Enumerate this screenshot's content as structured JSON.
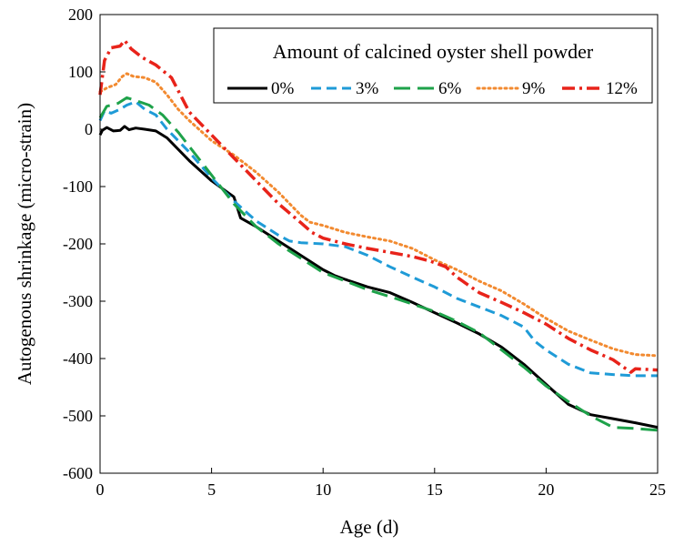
{
  "chart_data": {
    "type": "line",
    "xlabel": "Age (d)",
    "ylabel": "Autogenous  shrinkage  (micro-strain)",
    "xlim": [
      0,
      25
    ],
    "ylim": [
      -600,
      200
    ],
    "xticks": [
      0,
      5,
      10,
      15,
      20,
      25
    ],
    "yticks": [
      200,
      100,
      0,
      -100,
      -200,
      -300,
      -400,
      -500,
      -600
    ],
    "xtick_labels": [
      "0",
      "5",
      "10",
      "15",
      "20",
      "25"
    ],
    "ytick_labels": [
      "200",
      "100",
      "0",
      "-100",
      "-200",
      "-300",
      "-400",
      "-500",
      "-600"
    ],
    "grid": false,
    "legend": {
      "title": "Amount  of calcined oyster shell powder",
      "position": "top-right"
    },
    "series": [
      {
        "name": "0%",
        "color": "#000000",
        "dash": "solid",
        "points": [
          [
            0,
            -10
          ],
          [
            0.1,
            -2
          ],
          [
            0.3,
            3
          ],
          [
            0.6,
            -3
          ],
          [
            0.9,
            -2
          ],
          [
            1.1,
            5
          ],
          [
            1.3,
            -1
          ],
          [
            1.6,
            2
          ],
          [
            2,
            0
          ],
          [
            2.5,
            -3
          ],
          [
            3,
            -15
          ],
          [
            4,
            -55
          ],
          [
            5,
            -90
          ],
          [
            6,
            -118
          ],
          [
            6.1,
            -130
          ],
          [
            6.3,
            -155
          ],
          [
            7,
            -170
          ],
          [
            8,
            -195
          ],
          [
            9,
            -220
          ],
          [
            10,
            -245
          ],
          [
            10.5,
            -255
          ],
          [
            11,
            -262
          ],
          [
            12,
            -275
          ],
          [
            13,
            -285
          ],
          [
            14,
            -302
          ],
          [
            15,
            -320
          ],
          [
            16,
            -338
          ],
          [
            17,
            -357
          ],
          [
            18,
            -380
          ],
          [
            19,
            -410
          ],
          [
            20,
            -445
          ],
          [
            21,
            -480
          ],
          [
            22,
            -498
          ],
          [
            23,
            -505
          ],
          [
            24,
            -512
          ],
          [
            25,
            -520
          ]
        ]
      },
      {
        "name": "3%",
        "color": "#1f9bd7",
        "dash": "dashed",
        "points": [
          [
            0,
            15
          ],
          [
            0.2,
            32
          ],
          [
            0.5,
            28
          ],
          [
            0.9,
            35
          ],
          [
            1.2,
            42
          ],
          [
            1.6,
            48
          ],
          [
            2,
            35
          ],
          [
            2.5,
            25
          ],
          [
            3,
            0
          ],
          [
            4,
            -40
          ],
          [
            5,
            -85
          ],
          [
            6,
            -125
          ],
          [
            7,
            -160
          ],
          [
            8,
            -185
          ],
          [
            8.5,
            -195
          ],
          [
            9,
            -198
          ],
          [
            10,
            -200
          ],
          [
            11,
            -205
          ],
          [
            12,
            -220
          ],
          [
            13,
            -240
          ],
          [
            14,
            -258
          ],
          [
            15,
            -275
          ],
          [
            16,
            -295
          ],
          [
            17,
            -310
          ],
          [
            18,
            -325
          ],
          [
            19,
            -345
          ],
          [
            19.5,
            -370
          ],
          [
            20,
            -385
          ],
          [
            21,
            -410
          ],
          [
            22,
            -425
          ],
          [
            23,
            -428
          ],
          [
            24,
            -430
          ],
          [
            25,
            -430
          ]
        ]
      },
      {
        "name": "6%",
        "color": "#1ea24a",
        "dash": "longdash",
        "points": [
          [
            0,
            20
          ],
          [
            0.3,
            40
          ],
          [
            0.8,
            45
          ],
          [
            1.2,
            55
          ],
          [
            1.6,
            50
          ],
          [
            2.2,
            42
          ],
          [
            2.8,
            25
          ],
          [
            3.5,
            -5
          ],
          [
            4,
            -30
          ],
          [
            5,
            -80
          ],
          [
            6,
            -130
          ],
          [
            7,
            -170
          ],
          [
            8,
            -200
          ],
          [
            9,
            -225
          ],
          [
            10,
            -250
          ],
          [
            11,
            -265
          ],
          [
            12,
            -280
          ],
          [
            13,
            -292
          ],
          [
            14,
            -305
          ],
          [
            15,
            -318
          ],
          [
            16,
            -335
          ],
          [
            17,
            -355
          ],
          [
            18,
            -385
          ],
          [
            19,
            -415
          ],
          [
            20,
            -448
          ],
          [
            21,
            -475
          ],
          [
            22,
            -500
          ],
          [
            23,
            -520
          ],
          [
            24,
            -522
          ],
          [
            25,
            -525
          ]
        ]
      },
      {
        "name": "9%",
        "color": "#f28a30",
        "dash": "dotted",
        "points": [
          [
            0,
            65
          ],
          [
            0.3,
            72
          ],
          [
            0.7,
            78
          ],
          [
            1,
            92
          ],
          [
            1.2,
            97
          ],
          [
            1.5,
            92
          ],
          [
            2,
            90
          ],
          [
            2.5,
            82
          ],
          [
            3,
            60
          ],
          [
            3.5,
            35
          ],
          [
            4,
            15
          ],
          [
            5,
            -20
          ],
          [
            6,
            -45
          ],
          [
            7,
            -75
          ],
          [
            8,
            -110
          ],
          [
            9,
            -150
          ],
          [
            9.4,
            -162
          ],
          [
            10,
            -168
          ],
          [
            11,
            -180
          ],
          [
            12,
            -188
          ],
          [
            13,
            -195
          ],
          [
            14,
            -208
          ],
          [
            15,
            -228
          ],
          [
            16,
            -245
          ],
          [
            17,
            -265
          ],
          [
            18,
            -282
          ],
          [
            19,
            -305
          ],
          [
            20,
            -330
          ],
          [
            21,
            -352
          ],
          [
            22,
            -368
          ],
          [
            23,
            -383
          ],
          [
            24,
            -393
          ],
          [
            25,
            -395
          ]
        ]
      },
      {
        "name": "12%",
        "color": "#e8231a",
        "dash": "dashdot",
        "points": [
          [
            0,
            60
          ],
          [
            0.2,
            120
          ],
          [
            0.5,
            142
          ],
          [
            0.9,
            145
          ],
          [
            1.1,
            155
          ],
          [
            1.4,
            140
          ],
          [
            1.9,
            125
          ],
          [
            2.5,
            112
          ],
          [
            3.2,
            90
          ],
          [
            4,
            30
          ],
          [
            5,
            -10
          ],
          [
            6,
            -50
          ],
          [
            7,
            -90
          ],
          [
            8,
            -130
          ],
          [
            9,
            -163
          ],
          [
            9.5,
            -180
          ],
          [
            10,
            -190
          ],
          [
            11,
            -200
          ],
          [
            12,
            -208
          ],
          [
            13,
            -215
          ],
          [
            14,
            -222
          ],
          [
            14.8,
            -230
          ],
          [
            15.5,
            -240
          ],
          [
            16,
            -258
          ],
          [
            17,
            -285
          ],
          [
            18,
            -302
          ],
          [
            19,
            -320
          ],
          [
            20,
            -340
          ],
          [
            21,
            -365
          ],
          [
            22,
            -385
          ],
          [
            23,
            -402
          ],
          [
            23.8,
            -424
          ],
          [
            24,
            -418
          ],
          [
            25,
            -420
          ]
        ]
      }
    ]
  }
}
